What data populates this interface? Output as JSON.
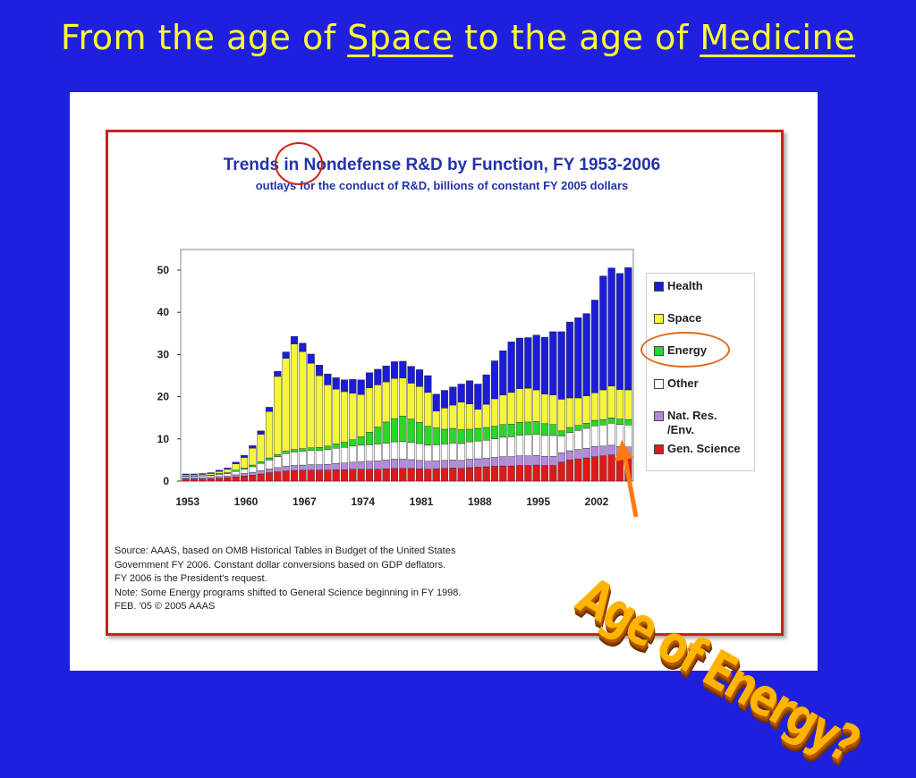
{
  "slide": {
    "title_part1": "From the age of ",
    "title_space": "Space",
    "title_part2": " to the age of ",
    "title_medicine": "Medicine",
    "callout": "Age of Energy?"
  },
  "colors": {
    "background": "#1f1fe0",
    "title_text": "#ffff33",
    "health": "#1c1cd6",
    "space": "#f5f53a",
    "energy": "#2ad62a",
    "other": "#ffffff",
    "nat_res": "#b48ae0",
    "gen_science": "#dd1a1a",
    "arrow": "#ff7a10",
    "circle": "#e06a1a"
  },
  "chart_data": {
    "type": "bar",
    "stacked": true,
    "title": "Trends in Nondefense R&D by Function, FY 1953-2006",
    "subtitle": "outlays for the conduct of R&D, billions of constant FY 2005 dollars",
    "xlabel": "",
    "ylabel": "",
    "ylim": [
      0,
      52
    ],
    "yticks": [
      0,
      10,
      20,
      30,
      40,
      50
    ],
    "xticks": [
      "1953",
      "1960",
      "1967",
      "1974",
      "1981",
      "1988",
      "1995",
      "2002"
    ],
    "categories": [
      1953,
      1954,
      1955,
      1956,
      1957,
      1958,
      1959,
      1960,
      1961,
      1962,
      1963,
      1964,
      1965,
      1966,
      1967,
      1968,
      1969,
      1970,
      1971,
      1972,
      1973,
      1974,
      1975,
      1976,
      1977,
      1978,
      1979,
      1980,
      1981,
      1982,
      1983,
      1984,
      1985,
      1986,
      1987,
      1988,
      1989,
      1990,
      1991,
      1992,
      1993,
      1994,
      1995,
      1996,
      1997,
      1998,
      1999,
      2000,
      2001,
      2002,
      2003,
      2004,
      2005,
      2006
    ],
    "series": [
      {
        "name": "Gen. Science",
        "values": [
          0.5,
          0.5,
          0.5,
          0.6,
          0.7,
          0.8,
          1.0,
          1.2,
          1.4,
          1.7,
          2.0,
          2.2,
          2.4,
          2.5,
          2.6,
          2.6,
          2.6,
          2.6,
          2.7,
          2.7,
          2.8,
          2.8,
          2.8,
          2.8,
          2.9,
          3.0,
          3.0,
          3.0,
          2.9,
          2.8,
          2.9,
          3.0,
          3.1,
          3.0,
          3.2,
          3.3,
          3.4,
          3.5,
          3.6,
          3.6,
          3.7,
          3.7,
          3.8,
          3.7,
          3.7,
          4.5,
          5.0,
          5.2,
          5.5,
          5.8,
          6.0,
          6.2,
          6.0,
          6.0
        ]
      },
      {
        "name": "Nat. Res. /Env.",
        "values": [
          0.3,
          0.3,
          0.3,
          0.3,
          0.4,
          0.4,
          0.5,
          0.6,
          0.7,
          0.8,
          0.9,
          1.0,
          1.1,
          1.2,
          1.2,
          1.3,
          1.3,
          1.4,
          1.5,
          1.6,
          1.7,
          1.8,
          1.9,
          2.0,
          2.1,
          2.2,
          2.2,
          2.1,
          2.0,
          1.9,
          1.9,
          1.9,
          1.9,
          1.9,
          2.0,
          2.0,
          2.0,
          2.1,
          2.2,
          2.2,
          2.3,
          2.3,
          2.3,
          2.2,
          2.2,
          2.2,
          2.2,
          2.3,
          2.3,
          2.4,
          2.3,
          2.3,
          2.2,
          2.1
        ]
      },
      {
        "name": "Other",
        "values": [
          0.3,
          0.3,
          0.4,
          0.4,
          0.5,
          0.6,
          0.8,
          1.0,
          1.3,
          1.7,
          2.1,
          2.6,
          3.0,
          3.2,
          3.3,
          3.4,
          3.4,
          3.5,
          3.6,
          3.7,
          3.8,
          3.9,
          3.9,
          4.0,
          4.0,
          4.1,
          4.2,
          4.1,
          4.0,
          3.8,
          3.8,
          3.9,
          4.0,
          4.0,
          4.1,
          4.2,
          4.3,
          4.4,
          4.6,
          4.7,
          4.9,
          5.0,
          5.0,
          4.9,
          4.9,
          4.0,
          4.3,
          4.5,
          4.7,
          4.9,
          5.0,
          5.2,
          5.2,
          5.2
        ]
      },
      {
        "name": "Energy",
        "values": [
          0.1,
          0.1,
          0.1,
          0.1,
          0.2,
          0.2,
          0.3,
          0.3,
          0.4,
          0.4,
          0.5,
          0.5,
          0.6,
          0.6,
          0.6,
          0.6,
          0.7,
          0.8,
          1.0,
          1.2,
          1.5,
          2.0,
          3.0,
          4.0,
          5.0,
          5.5,
          6.0,
          5.5,
          5.0,
          4.5,
          4.0,
          3.5,
          3.5,
          3.3,
          3.0,
          3.0,
          3.0,
          3.0,
          3.0,
          3.0,
          3.0,
          3.0,
          3.0,
          2.8,
          2.6,
          1.2,
          1.2,
          1.2,
          1.2,
          1.3,
          1.3,
          1.3,
          1.3,
          1.3
        ]
      },
      {
        "name": "Space",
        "values": [
          0.3,
          0.3,
          0.3,
          0.4,
          0.5,
          0.8,
          1.5,
          2.5,
          4.0,
          6.5,
          11.0,
          18.5,
          22.0,
          25.0,
          23.0,
          20.0,
          17.0,
          14.5,
          13.0,
          12.0,
          11.0,
          10.0,
          10.5,
          10.0,
          9.5,
          9.5,
          9.0,
          8.5,
          8.5,
          8.0,
          4.0,
          5.0,
          5.5,
          6.5,
          6.0,
          4.5,
          5.5,
          6.5,
          7.0,
          7.5,
          8.0,
          8.0,
          7.5,
          7.0,
          7.0,
          7.5,
          7.0,
          6.5,
          6.5,
          6.5,
          7.0,
          7.5,
          7.0,
          7.0
        ]
      },
      {
        "name": "Health",
        "values": [
          0.2,
          0.2,
          0.2,
          0.2,
          0.3,
          0.3,
          0.4,
          0.5,
          0.6,
          0.8,
          1.0,
          1.2,
          1.5,
          1.8,
          2.0,
          2.2,
          2.5,
          2.6,
          2.7,
          2.8,
          3.3,
          3.5,
          3.6,
          3.7,
          3.8,
          4.0,
          4.0,
          4.0,
          4.0,
          4.0,
          4.0,
          4.2,
          4.3,
          4.3,
          5.5,
          6.0,
          7.0,
          9.0,
          10.5,
          12.0,
          12.0,
          12.0,
          13.0,
          13.5,
          15.0,
          16.0,
          18.0,
          19.0,
          19.5,
          22.0,
          27.0,
          28.0,
          27.5,
          29.0
        ]
      }
    ],
    "legend": {
      "position": "right",
      "order": [
        "Health",
        "Space",
        "Energy",
        "Other",
        "Nat. Res. /Env.",
        "Gen. Science"
      ]
    },
    "grid": false,
    "source_note": [
      "Source: AAAS, based on OMB Historical Tables in Budget of the United States",
      "Government FY 2006.  Constant dollar conversions based on  GDP deflators.",
      "FY 2006 is the President's request.",
      "Note: Some Energy programs shifted to General Science beginning in FY 1998.",
      "FEB. '05 © 2005 AAAS"
    ]
  }
}
